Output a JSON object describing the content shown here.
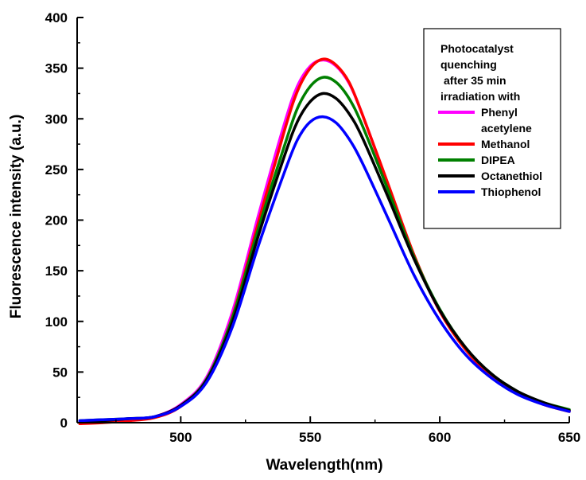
{
  "chart_data": {
    "type": "line",
    "title": "",
    "xlabel": "Wavelength(nm)",
    "ylabel": "Fluorescence intensity (a.u.)",
    "xlim": [
      460,
      650
    ],
    "ylim": [
      0,
      400
    ],
    "x_ticks": [
      500,
      550,
      600,
      650
    ],
    "y_ticks": [
      0,
      50,
      100,
      150,
      200,
      250,
      300,
      350,
      400
    ],
    "grid": false,
    "legend": {
      "placement": "top-right",
      "title_lines": [
        "Photocatalyst",
        "quenching",
        " after 35 min",
        "irradiation with"
      ]
    },
    "series": [
      {
        "name": "Phenyl acetylene",
        "legend_lines": [
          "Phenyl",
          "acetylene"
        ],
        "color": "#ff00ff",
        "x": [
          461,
          470,
          480,
          490,
          500,
          510,
          520,
          530,
          540,
          545,
          550,
          555,
          560,
          565,
          570,
          580,
          590,
          600,
          610,
          620,
          630,
          640,
          650
        ],
        "y": [
          1,
          2,
          3,
          6,
          18,
          45,
          110,
          205,
          295,
          332,
          352,
          358,
          352,
          335,
          305,
          235,
          165,
          110,
          73,
          47,
          30,
          19,
          12
        ]
      },
      {
        "name": "Methanol",
        "legend_lines": [
          "Methanol"
        ],
        "color": "#ff0000",
        "x": [
          461,
          470,
          480,
          490,
          500,
          510,
          520,
          530,
          540,
          545,
          550,
          555,
          560,
          565,
          570,
          580,
          590,
          600,
          610,
          620,
          630,
          640,
          650
        ],
        "y": [
          -1,
          0,
          2,
          5,
          16,
          42,
          105,
          198,
          288,
          327,
          350,
          359,
          353,
          336,
          305,
          236,
          166,
          110,
          72,
          46,
          29,
          18,
          11
        ]
      },
      {
        "name": "DIPEA",
        "legend_lines": [
          "DIPEA"
        ],
        "color": "#008000",
        "x": [
          461,
          470,
          480,
          490,
          500,
          510,
          520,
          530,
          540,
          545,
          550,
          555,
          560,
          565,
          570,
          580,
          590,
          600,
          610,
          620,
          630,
          640,
          650
        ],
        "y": [
          2,
          3,
          4,
          6,
          17,
          43,
          104,
          192,
          273,
          310,
          332,
          341,
          336,
          320,
          294,
          230,
          164,
          112,
          74,
          48,
          31,
          20,
          13
        ]
      },
      {
        "name": "Octanethiol",
        "legend_lines": [
          "Octanethiol"
        ],
        "color": "#000000",
        "x": [
          461,
          470,
          480,
          490,
          500,
          510,
          520,
          530,
          540,
          545,
          550,
          555,
          560,
          565,
          570,
          580,
          590,
          600,
          610,
          620,
          630,
          640,
          650
        ],
        "y": [
          1,
          2,
          4,
          6,
          17,
          42,
          100,
          185,
          263,
          297,
          317,
          325,
          320,
          305,
          282,
          223,
          162,
          111,
          74,
          48,
          31,
          20,
          12
        ]
      },
      {
        "name": "Thiophenol",
        "legend_lines": [
          "Thiophenol"
        ],
        "color": "#0000ff",
        "x": [
          461,
          470,
          480,
          490,
          500,
          510,
          520,
          530,
          540,
          545,
          550,
          555,
          560,
          565,
          570,
          580,
          590,
          600,
          610,
          620,
          630,
          640,
          650
        ],
        "y": [
          2,
          3,
          4,
          6,
          16,
          40,
          95,
          175,
          247,
          279,
          297,
          302,
          296,
          280,
          257,
          202,
          146,
          101,
          67,
          44,
          28,
          18,
          11
        ]
      }
    ]
  }
}
